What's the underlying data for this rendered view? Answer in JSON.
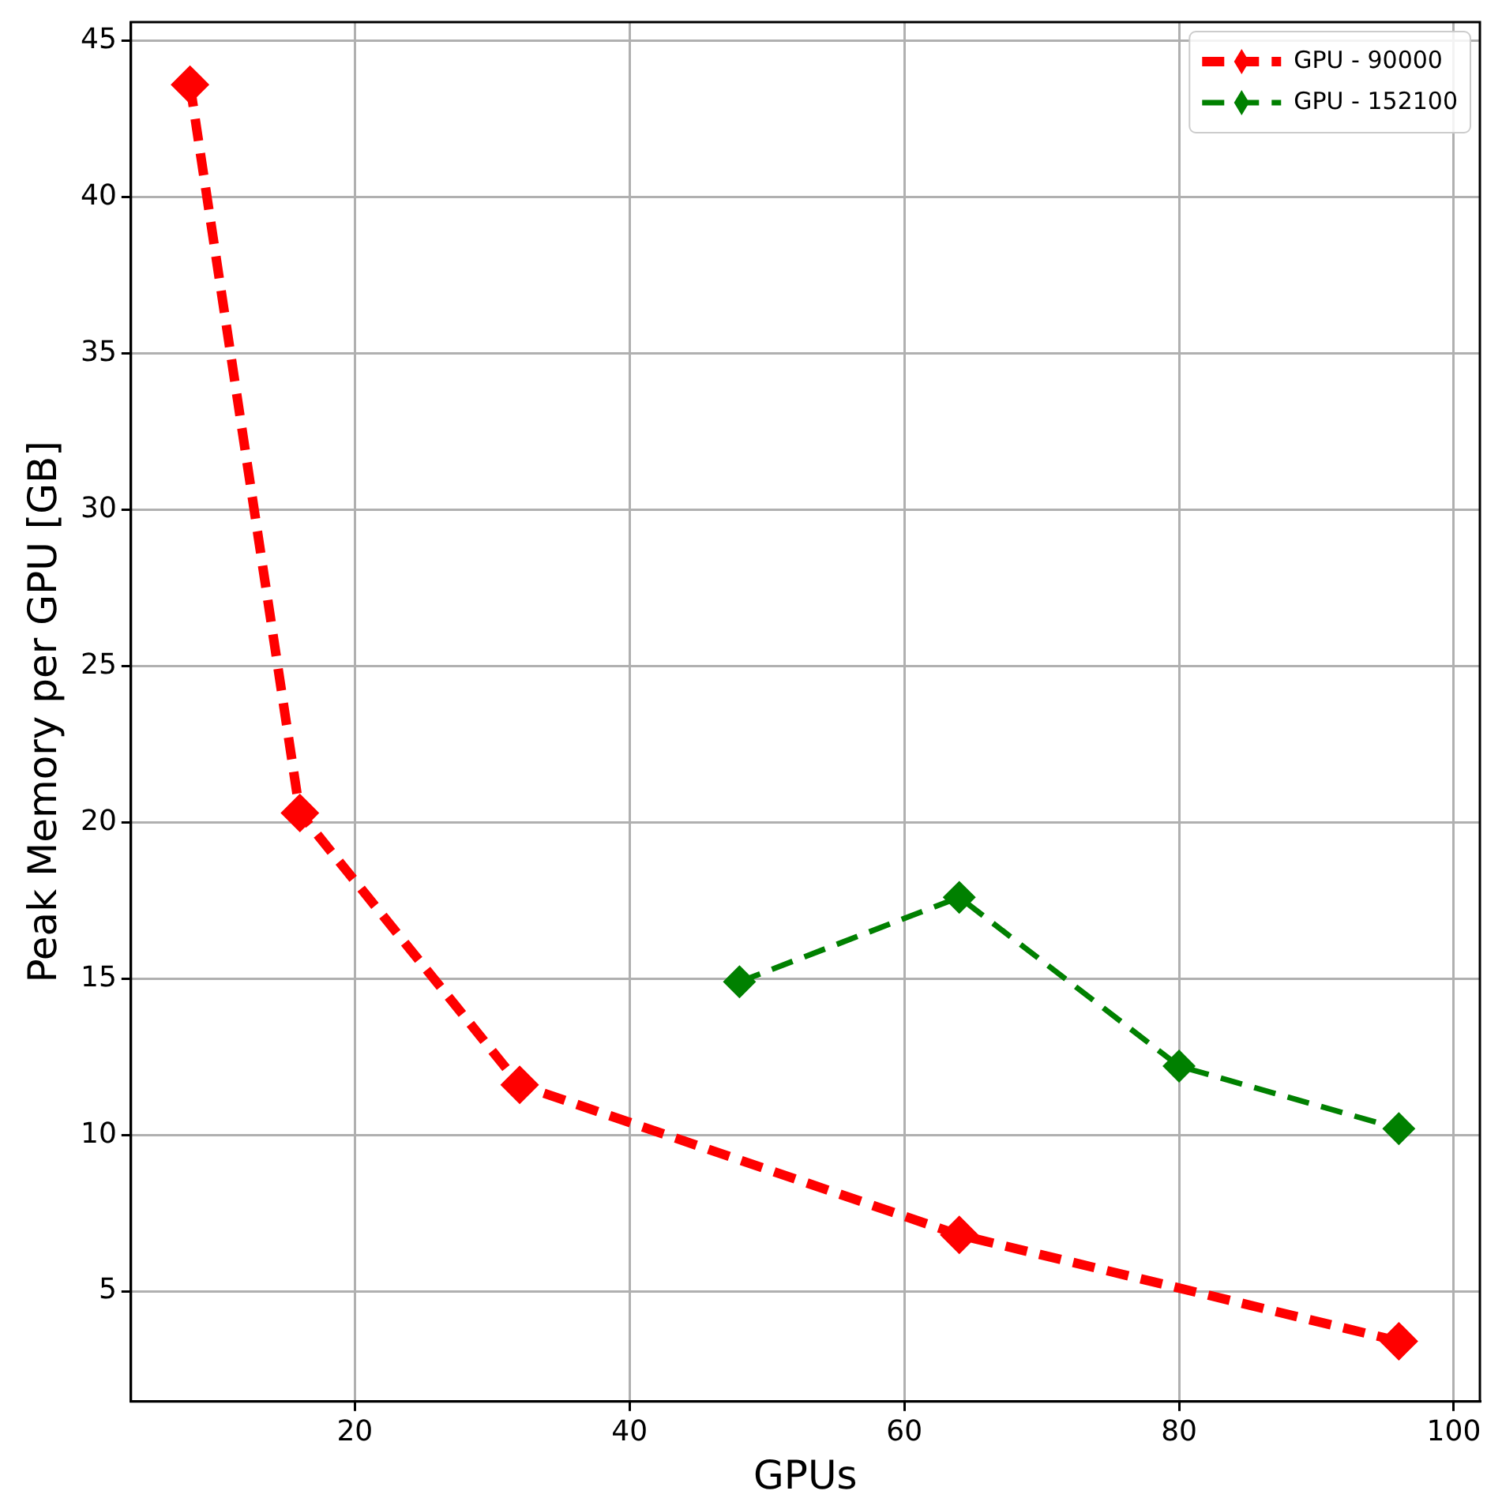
{
  "chart_data": {
    "type": "line",
    "xlabel": "GPUs",
    "ylabel": "Peak Memory per GPU [GB]",
    "xlim": [
      3.7,
      101.9
    ],
    "xticks": [
      20,
      40,
      60,
      80,
      100
    ],
    "ylim": [
      1.47,
      45.6
    ],
    "yticks": [
      5,
      10,
      15,
      20,
      25,
      30,
      35,
      40,
      45
    ],
    "grid": true,
    "legend": "top right",
    "marker": "diamond",
    "line_style": "dashed",
    "series": [
      {
        "name": "GPU - 90000",
        "color": "#ff0000",
        "x": [
          8,
          16,
          32,
          64,
          96
        ],
        "values": [
          43.6,
          20.3,
          11.6,
          6.8,
          3.4
        ]
      },
      {
        "name": "GPU - 152100",
        "color": "#008000",
        "x": [
          48,
          64,
          80,
          96
        ],
        "values": [
          14.9,
          17.6,
          12.2,
          10.2
        ]
      }
    ]
  }
}
